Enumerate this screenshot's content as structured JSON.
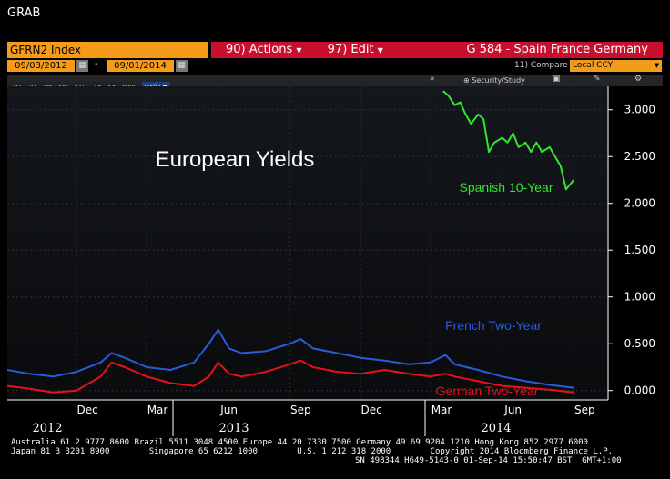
{
  "window_title": "GRAB",
  "ticker_field": "GFRN2 Index",
  "menu": {
    "actions_label": "90) Actions",
    "edit_label": "97) Edit",
    "title": "G 584 - Spain France Germany"
  },
  "dates": {
    "start": "09/03/2012",
    "end": "09/01/2014",
    "dash": "-"
  },
  "compare": {
    "label": "11) Compare",
    "ccy": "Local CCY"
  },
  "timeframes": [
    "1D",
    "3D",
    "1M",
    "6M",
    "YTD",
    "1Y",
    "5Y",
    "Max"
  ],
  "frequency": "Daily",
  "security_study": "Security/Study",
  "chart_data": {
    "type": "line",
    "title": "European Yields",
    "y_ticks": [
      "3.000",
      "2.500",
      "2.000",
      "1.500",
      "1.000",
      "0.500",
      "0.000"
    ],
    "ylim": [
      -0.1,
      3.25
    ],
    "x_month_labels": [
      "Dec",
      "Mar",
      "Jun",
      "Sep",
      "Dec",
      "Mar",
      "Jun",
      "Sep"
    ],
    "x_year_labels": [
      "2012",
      "2013",
      "2014"
    ],
    "series": [
      {
        "name": "Spanish 10-Year",
        "color": "#2ee82e",
        "x": [
          "2014-03-17",
          "2014-03-24",
          "2014-04-01",
          "2014-04-08",
          "2014-04-15",
          "2014-04-22",
          "2014-05-01",
          "2014-05-08",
          "2014-05-15",
          "2014-05-22",
          "2014-06-01",
          "2014-06-08",
          "2014-06-15",
          "2014-06-22",
          "2014-07-01",
          "2014-07-08",
          "2014-07-15",
          "2014-07-22",
          "2014-08-01",
          "2014-08-08",
          "2014-08-15",
          "2014-08-22",
          "2014-09-01"
        ],
        "values": [
          3.2,
          3.15,
          3.05,
          3.08,
          2.95,
          2.85,
          2.95,
          2.9,
          2.55,
          2.65,
          2.7,
          2.65,
          2.75,
          2.6,
          2.65,
          2.55,
          2.65,
          2.55,
          2.6,
          2.5,
          2.4,
          2.15,
          2.25
        ]
      },
      {
        "name": "French Two-Year",
        "color": "#2a5bd7",
        "x": [
          "2012-09-03",
          "2012-10-01",
          "2012-11-01",
          "2012-12-01",
          "2013-01-01",
          "2013-01-15",
          "2013-02-01",
          "2013-03-01",
          "2013-04-01",
          "2013-05-01",
          "2013-05-20",
          "2013-06-01",
          "2013-06-15",
          "2013-07-01",
          "2013-08-01",
          "2013-09-01",
          "2013-09-15",
          "2013-10-01",
          "2013-11-01",
          "2013-12-01",
          "2014-01-01",
          "2014-02-01",
          "2014-03-01",
          "2014-03-20",
          "2014-04-01",
          "2014-05-01",
          "2014-06-01",
          "2014-07-01",
          "2014-08-01",
          "2014-09-01"
        ],
        "values": [
          0.22,
          0.18,
          0.15,
          0.2,
          0.3,
          0.4,
          0.35,
          0.25,
          0.22,
          0.3,
          0.5,
          0.65,
          0.45,
          0.4,
          0.42,
          0.5,
          0.55,
          0.45,
          0.4,
          0.35,
          0.32,
          0.28,
          0.3,
          0.38,
          0.28,
          0.22,
          0.15,
          0.1,
          0.06,
          0.03
        ]
      },
      {
        "name": "German Two-Year",
        "color": "#e8101a",
        "x": [
          "2012-09-03",
          "2012-10-01",
          "2012-11-01",
          "2012-12-01",
          "2013-01-01",
          "2013-01-15",
          "2013-02-01",
          "2013-03-01",
          "2013-04-01",
          "2013-05-01",
          "2013-05-20",
          "2013-06-01",
          "2013-06-15",
          "2013-07-01",
          "2013-08-01",
          "2013-09-01",
          "2013-09-15",
          "2013-10-01",
          "2013-11-01",
          "2013-12-01",
          "2014-01-01",
          "2014-02-01",
          "2014-03-01",
          "2014-03-20",
          "2014-04-01",
          "2014-05-01",
          "2014-06-01",
          "2014-07-01",
          "2014-08-01",
          "2014-09-01"
        ],
        "values": [
          0.05,
          0.02,
          -0.02,
          0.0,
          0.15,
          0.3,
          0.25,
          0.15,
          0.08,
          0.05,
          0.15,
          0.3,
          0.18,
          0.15,
          0.2,
          0.28,
          0.32,
          0.25,
          0.2,
          0.18,
          0.22,
          0.18,
          0.15,
          0.18,
          0.15,
          0.1,
          0.05,
          0.03,
          0.01,
          -0.02
        ]
      }
    ]
  },
  "footer": {
    "line1": "Australia 61 2 9777 8600 Brazil 5511 3048 4500 Europe 44 20 7330 7500 Germany 49 69 9204 1210 Hong Kong 852 2977 6000",
    "line2": "Japan 81 3 3201 8900        Singapore 65 6212 1000        U.S. 1 212 318 2000        Copyright 2014 Bloomberg Finance L.P.",
    "line3": "SN 498344 H649-5143-0 01-Sep-14 15:50:47 BST  GMT+1:00"
  }
}
